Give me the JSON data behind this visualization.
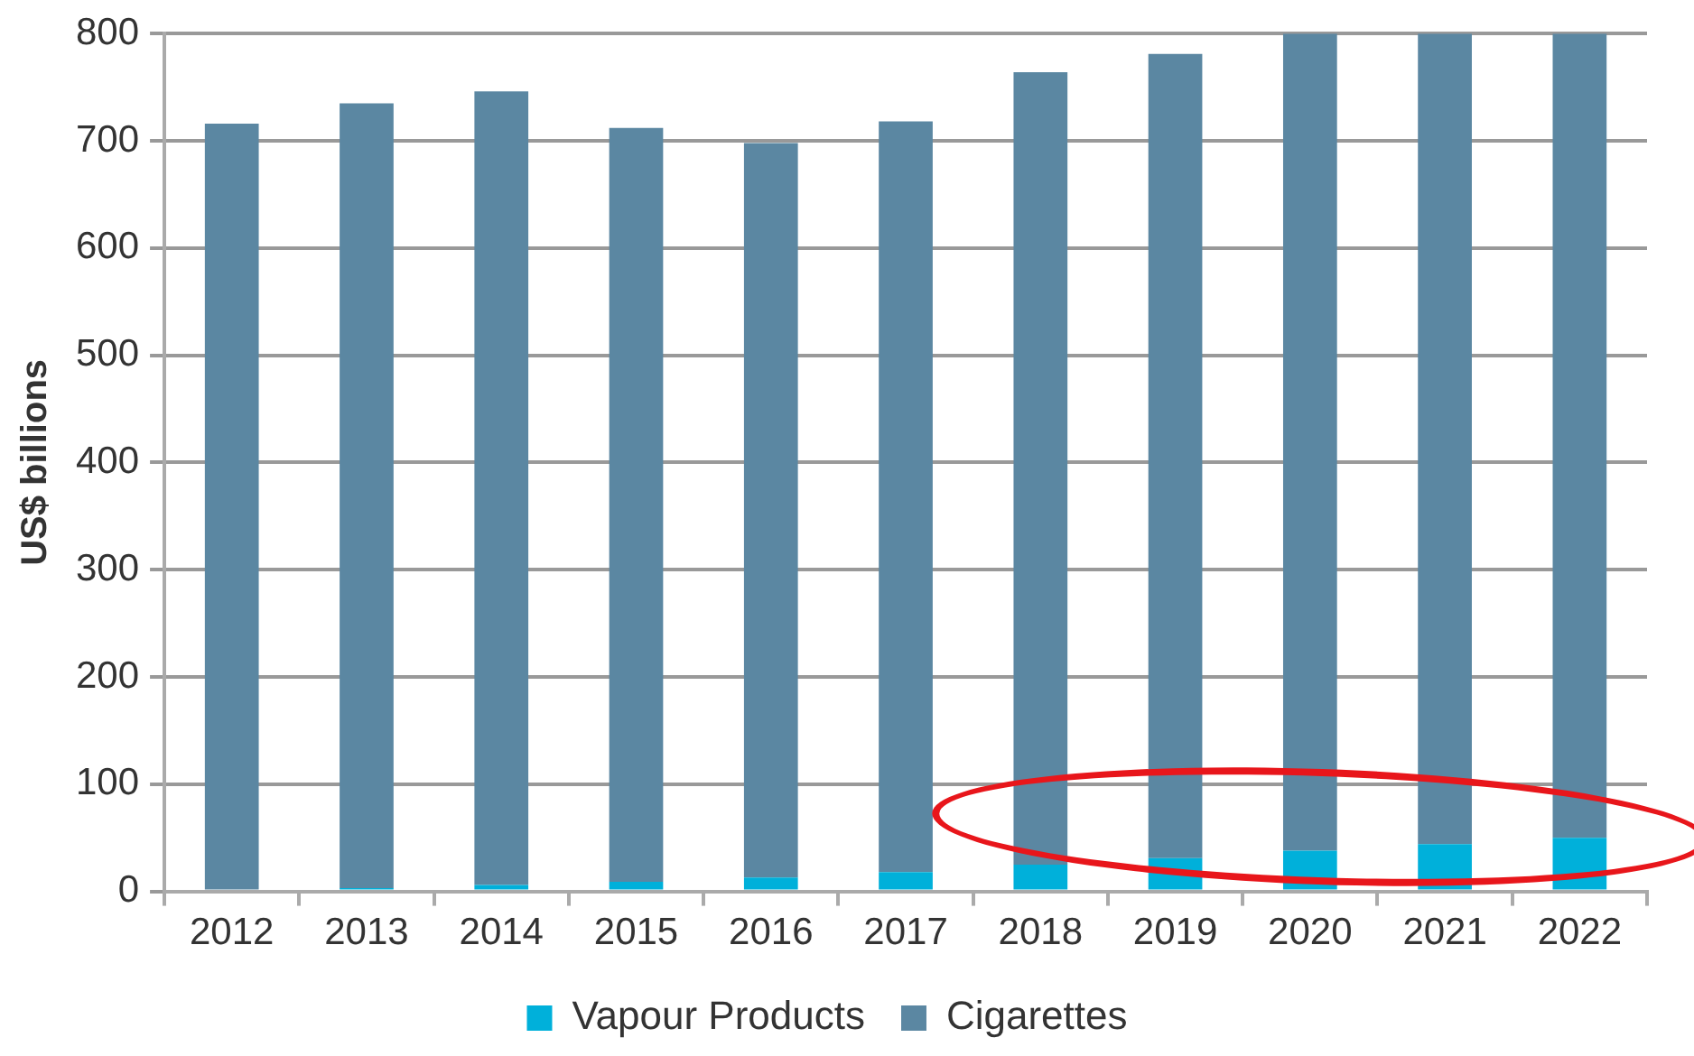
{
  "chart_data": {
    "type": "bar",
    "stacked": true,
    "ylabel": "US$ billions",
    "categories": [
      "2012",
      "2013",
      "2014",
      "2015",
      "2016",
      "2017",
      "2018",
      "2019",
      "2020",
      "2021",
      "2022"
    ],
    "series": [
      {
        "name": "Vapour Products",
        "color": "#00b0da",
        "values": [
          null,
          3,
          6,
          9,
          13,
          18,
          25,
          31,
          38,
          44,
          50
        ]
      },
      {
        "name": "Cigarettes",
        "color": "#5b87a2",
        "values": [
          716,
          732,
          740,
          703,
          685,
          700,
          739,
          750,
          762,
          756,
          750
        ]
      }
    ],
    "ylim": [
      0,
      800
    ],
    "yticks": [
      0,
      100,
      200,
      300,
      400,
      500,
      600,
      700,
      800
    ],
    "grid": "y",
    "legend": "bottom"
  }
}
